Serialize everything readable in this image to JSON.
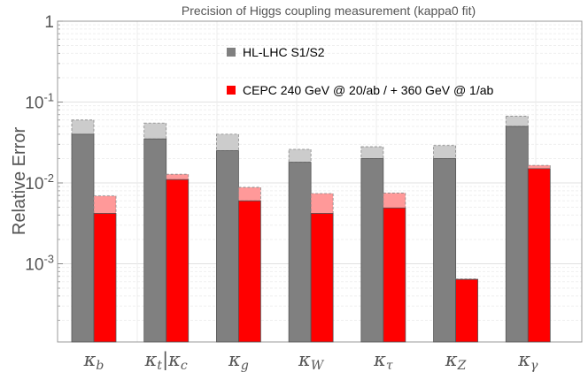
{
  "chart_data": {
    "type": "bar",
    "title": "Precision of Higgs coupling measurement (kappa0 fit)",
    "xlabel": "",
    "ylabel": "Relative Error",
    "yscale": "log",
    "ylim": [
      0.0001,
      1
    ],
    "yticks": [
      {
        "value": 1,
        "label": "1"
      },
      {
        "value": 0.1,
        "label": "10",
        "exp": "-1"
      },
      {
        "value": 0.01,
        "label": "10",
        "exp": "-2"
      },
      {
        "value": 0.001,
        "label": "10",
        "exp": "-3"
      }
    ],
    "grid": true,
    "categories": [
      {
        "base": "κ",
        "sub": "b"
      },
      {
        "base": "κ",
        "sub": "t",
        "sep": "|",
        "base2": "κ",
        "sub2": "c"
      },
      {
        "base": "κ",
        "sub": "g"
      },
      {
        "base": "κ",
        "sub": "W"
      },
      {
        "base": "κ",
        "sub": "τ"
      },
      {
        "base": "κ",
        "sub": "Z"
      },
      {
        "base": "κ",
        "sub": "γ"
      }
    ],
    "series": [
      {
        "name": "HL-LHC S1/S2",
        "color": "#808080",
        "light_color": "#cccccc",
        "values": [
          0.04,
          0.035,
          0.025,
          0.018,
          0.02,
          0.02,
          0.05
        ],
        "upper_values": [
          0.06,
          0.055,
          0.04,
          0.026,
          0.028,
          0.029,
          0.067
        ]
      },
      {
        "name": "CEPC 240 GeV @ 20/ab / + 360 GeV @ 1/ab",
        "color": "#ff0000",
        "light_color": "#ff9999",
        "values": [
          0.0042,
          0.011,
          0.006,
          0.0042,
          0.0049,
          0.00064,
          0.015
        ],
        "upper_values": [
          0.0069,
          0.0128,
          0.0088,
          0.0074,
          0.0075,
          0.00065,
          0.0165
        ]
      }
    ]
  }
}
